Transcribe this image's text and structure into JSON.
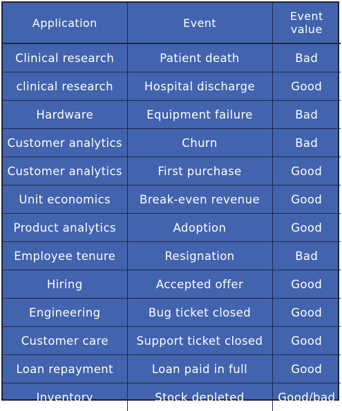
{
  "header": {
    "application": "Application",
    "event": "Event",
    "event_value_line1": "Event",
    "event_value_line2": "value"
  },
  "rows": [
    {
      "application": "Clinical research",
      "event": "Patient death",
      "value": "Bad"
    },
    {
      "application": "clinical research",
      "event": "Hospital discharge",
      "value": "Good"
    },
    {
      "application": "Hardware",
      "event": "Equipment failure",
      "value": "Bad"
    },
    {
      "application": "Customer analytics",
      "event": "Churn",
      "value": "Bad"
    },
    {
      "application": "Customer analytics",
      "event": "First purchase",
      "value": "Good"
    },
    {
      "application": "Unit economics",
      "event": "Break-even revenue",
      "value": "Good"
    },
    {
      "application": "Product analytics",
      "event": "Adoption",
      "value": "Good"
    },
    {
      "application": "Employee tenure",
      "event": "Resignation",
      "value": "Bad"
    },
    {
      "application": "Hiring",
      "event": "Accepted offer",
      "value": "Good"
    },
    {
      "application": "Engineering",
      "event": "Bug ticket closed",
      "value": "Good"
    },
    {
      "application": "Customer care",
      "event": "Support ticket closed",
      "value": "Good"
    },
    {
      "application": "Loan repayment",
      "event": "Loan paid in full",
      "value": "Good"
    },
    {
      "application": "Inventory",
      "event": "Stock depleted",
      "value": "Good/bad"
    }
  ],
  "colors": {
    "background": "#4263ad",
    "text": "#ffffff",
    "grid": "#1f2a47"
  }
}
